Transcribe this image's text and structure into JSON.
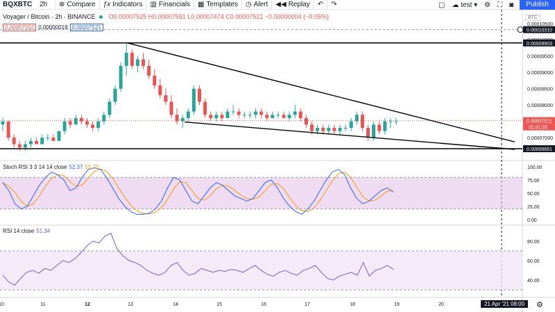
{
  "toolbar": {
    "symbol": "BQXBTC",
    "interval": "2h",
    "compare": "Compare",
    "indicators": "Indicators",
    "financials": "Financials",
    "templates": "Templates",
    "alert": "Alert",
    "replay": "Replay",
    "layout_name": "test",
    "publish": "Publish"
  },
  "legend": {
    "title": "Voyager / Bitcoin · 2h · BINANCE",
    "ohlc": "O0.00007525 H0.00007591 L0.00007474 C0.00007521 −0.00000004 (−0.05%)",
    "bid": "0.00007502",
    "spread": "0.00000019",
    "ask": "0.00007521"
  },
  "price_axis": {
    "currency": "BTC",
    "ticks": [
      {
        "label": "0.00010500",
        "value": 0.000105
      },
      {
        "label": "0.00010000",
        "value": 0.0001
      },
      {
        "label": "0.00009500",
        "value": 9.5e-05
      },
      {
        "label": "0.00009000",
        "value": 9e-05
      },
      {
        "label": "0.00008500",
        "value": 8.5e-05
      },
      {
        "label": "0.00008000",
        "value": 8e-05
      },
      {
        "label": "0.00007000",
        "value": 7e-05
      }
    ],
    "highlighted": [
      {
        "label": "0.00010310",
        "value": 0.0001031,
        "style": "dark"
      },
      {
        "label": "0.00009903",
        "value": 9.903e-05,
        "style": "dark"
      },
      {
        "label": "0.00007521",
        "value": 7.521e-05,
        "style": "red"
      },
      {
        "label": "0.00006661",
        "value": 6.661e-05,
        "style": "dark"
      }
    ],
    "countdown": "01:01:05"
  },
  "stoch": {
    "label": "Stoch RSI 3 3 14 14 close",
    "k_value": "52.37",
    "d_value": "55.70",
    "ticks": [
      "100.00",
      "75.00",
      "50.00",
      "25.00",
      "0.00"
    ]
  },
  "rsi": {
    "label": "RSI 14 close",
    "value": "51.34",
    "ticks": [
      "80.00",
      "60.00",
      "40.00"
    ]
  },
  "time_axis": {
    "ticks": [
      "10",
      "11",
      "12",
      "13",
      "14",
      "15",
      "16",
      "17",
      "18",
      "19",
      "20"
    ],
    "cursor_label": "21 Apr '21   08:00"
  },
  "colors": {
    "up": "#26a69a",
    "down": "#ef5350",
    "stoch_k": "#2962ff",
    "stoch_d": "#ff9800",
    "rsi": "#7e57c2",
    "band": "#e1bee7",
    "accent": "#2962ff"
  },
  "icons": {
    "compare": "plus-circle-icon",
    "indicators": "function-icon",
    "financials": "bars-icon",
    "templates": "grid-icon",
    "alert": "clock-icon",
    "replay": "rewind-icon"
  }
}
